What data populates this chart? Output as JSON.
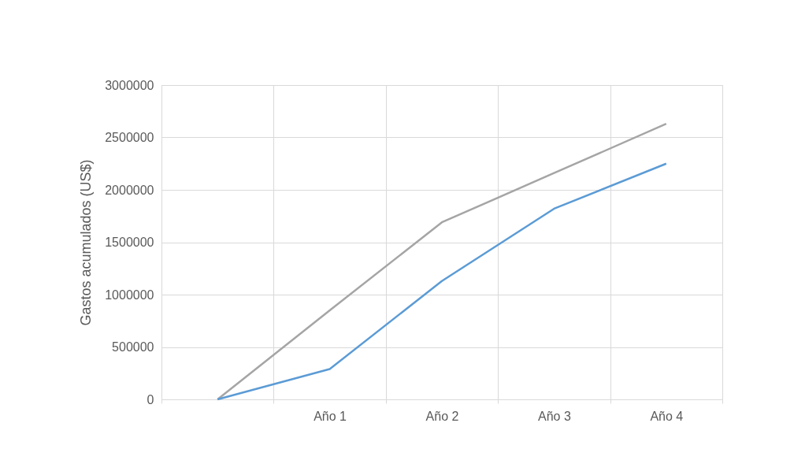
{
  "chart_data": {
    "type": "line",
    "ylabel": "Gastos acumulados (US$)",
    "categories": [
      null,
      "Año 1",
      "Año 2",
      "Año 3",
      "Año 4"
    ],
    "series": [
      {
        "color": "#a5a5a5",
        "values": [
          0,
          850000,
          1690000,
          2160000,
          2630000
        ]
      },
      {
        "color": "#5b9bd5",
        "values": [
          0,
          290000,
          1130000,
          1820000,
          2250000
        ]
      }
    ],
    "ylim": [
      0,
      3000000
    ],
    "yticks": [
      0,
      500000,
      1000000,
      1500000,
      2000000,
      2500000,
      3000000
    ],
    "grid": true,
    "legend": false,
    "marker": "none",
    "line_style": "solid"
  }
}
